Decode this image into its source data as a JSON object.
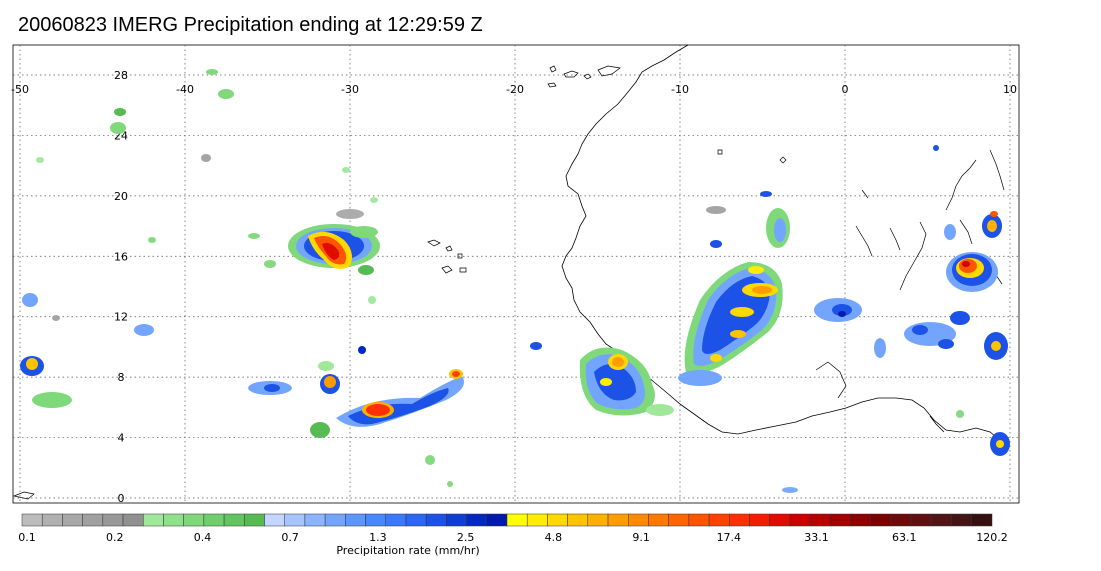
{
  "title": "20060823 IMERG Precipitation ending at 12:29:59 Z",
  "map": {
    "lon_range": [
      -50,
      10
    ],
    "lat_range": [
      -1,
      30
    ],
    "lon_ticks": [
      "-50",
      "-40",
      "-30",
      "-20",
      "-10",
      "0",
      "10"
    ],
    "lat_ticks": [
      "28",
      "24",
      "20",
      "16",
      "12",
      "8",
      "4",
      "0"
    ],
    "grid": "dotted",
    "coastline_color": "#000000"
  },
  "colorbar": {
    "label": "Precipitation rate (mm/hr)",
    "tick_labels": [
      "0.1",
      "0.2",
      "0.4",
      "0.7",
      "1.3",
      "2.5",
      "4.8",
      "9.1",
      "17.4",
      "33.1",
      "63.1",
      "120.2"
    ],
    "colors": [
      "#bcbcbc",
      "#b0b0b0",
      "#a8a8a8",
      "#a0a0a0",
      "#989898",
      "#909090",
      "#9fe89a",
      "#8fe08a",
      "#7fd87a",
      "#70cf6c",
      "#62c55f",
      "#56bb53",
      "#c2d6ff",
      "#a6c4ff",
      "#8cb4ff",
      "#73a5ff",
      "#5c96ff",
      "#4888ff",
      "#3a78ff",
      "#2c66f5",
      "#1c52e6",
      "#0e3ed6",
      "#0428c4",
      "#001ab0",
      "#ffff00",
      "#ffec00",
      "#ffd800",
      "#ffc400",
      "#ffb000",
      "#ff9c00",
      "#ff8a00",
      "#ff7800",
      "#ff6600",
      "#ff5400",
      "#ff4200",
      "#ff3000",
      "#f21e00",
      "#e00c00",
      "#cc0000",
      "#b80000",
      "#a40000",
      "#900000",
      "#7c0000",
      "#6e0a0a",
      "#601010",
      "#521414",
      "#441414",
      "#361010"
    ]
  }
}
